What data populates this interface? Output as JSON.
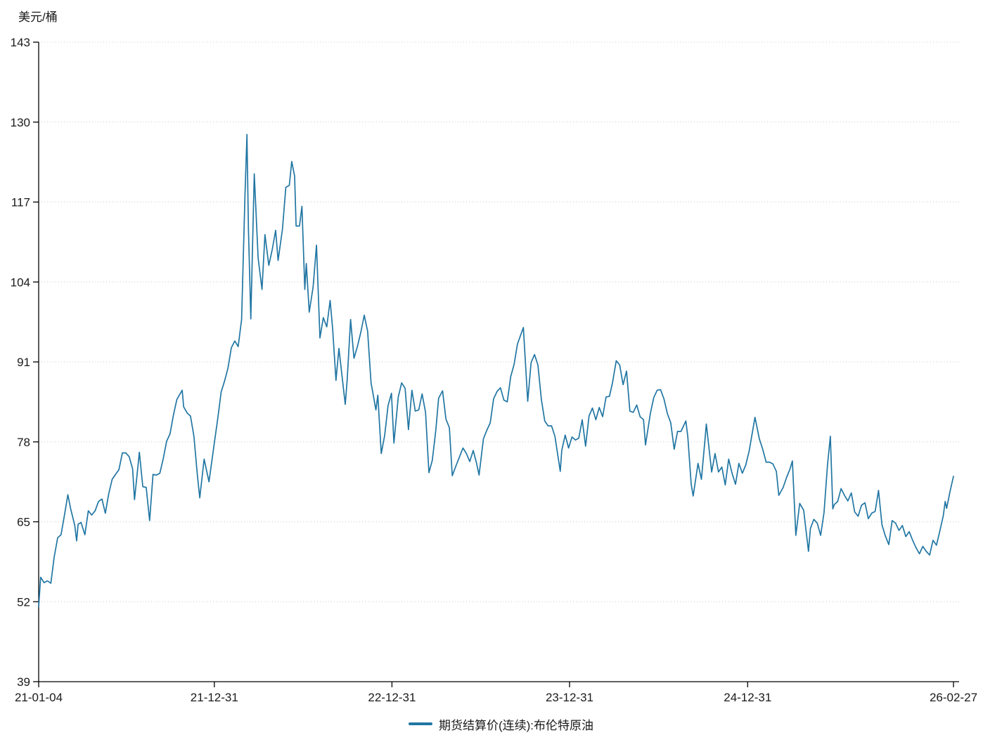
{
  "chart_data": {
    "type": "line",
    "unit": "美元/桶",
    "legend": "期货结算价(连续):布伦特原油",
    "ylim": [
      39,
      143
    ],
    "y_ticks": [
      39,
      52,
      65,
      78,
      91,
      104,
      117,
      130,
      143
    ],
    "x_ticks": [
      {
        "label": "21-01-04",
        "date": "2021-01-04"
      },
      {
        "label": "21-12-31",
        "date": "2021-12-31"
      },
      {
        "label": "22-12-31",
        "date": "2022-12-31"
      },
      {
        "label": "23-12-31",
        "date": "2023-12-31"
      },
      {
        "label": "24-12-31",
        "date": "2024-12-31"
      },
      {
        "label": "26-02-27",
        "date": "2026-02-27"
      }
    ],
    "grid": true,
    "legend_position": "bottom",
    "colors": {
      "line": "#2176a3",
      "grid": "#cccccc",
      "axis": "#000000",
      "text": "#1a1a1a"
    },
    "points": [
      [
        "2021-01-04",
        51.2
      ],
      [
        "2021-01-08",
        55.99
      ],
      [
        "2021-01-15",
        55.1
      ],
      [
        "2021-01-22",
        55.4
      ],
      [
        "2021-01-29",
        55.0
      ],
      [
        "2021-02-05",
        59.3
      ],
      [
        "2021-02-12",
        62.4
      ],
      [
        "2021-02-19",
        62.9
      ],
      [
        "2021-02-26",
        66.1
      ],
      [
        "2021-03-05",
        69.4
      ],
      [
        "2021-03-11",
        67.0
      ],
      [
        "2021-03-19",
        64.5
      ],
      [
        "2021-03-23",
        61.9
      ],
      [
        "2021-03-26",
        64.6
      ],
      [
        "2021-04-01",
        64.9
      ],
      [
        "2021-04-09",
        62.9
      ],
      [
        "2021-04-16",
        66.8
      ],
      [
        "2021-04-23",
        66.1
      ],
      [
        "2021-04-30",
        66.8
      ],
      [
        "2021-05-07",
        68.3
      ],
      [
        "2021-05-14",
        68.7
      ],
      [
        "2021-05-21",
        66.4
      ],
      [
        "2021-05-28",
        69.6
      ],
      [
        "2021-06-04",
        71.9
      ],
      [
        "2021-06-11",
        72.7
      ],
      [
        "2021-06-18",
        73.5
      ],
      [
        "2021-06-25",
        76.2
      ],
      [
        "2021-07-02",
        76.2
      ],
      [
        "2021-07-09",
        75.6
      ],
      [
        "2021-07-16",
        73.6
      ],
      [
        "2021-07-20",
        68.6
      ],
      [
        "2021-07-30",
        76.3
      ],
      [
        "2021-08-06",
        70.7
      ],
      [
        "2021-08-13",
        70.6
      ],
      [
        "2021-08-20",
        65.2
      ],
      [
        "2021-08-27",
        72.7
      ],
      [
        "2021-09-03",
        72.6
      ],
      [
        "2021-09-10",
        72.9
      ],
      [
        "2021-09-17",
        75.3
      ],
      [
        "2021-09-24",
        78.1
      ],
      [
        "2021-10-01",
        79.3
      ],
      [
        "2021-10-08",
        82.4
      ],
      [
        "2021-10-15",
        84.9
      ],
      [
        "2021-10-26",
        86.4
      ],
      [
        "2021-10-29",
        83.7
      ],
      [
        "2021-11-05",
        82.7
      ],
      [
        "2021-11-12",
        82.2
      ],
      [
        "2021-11-19",
        78.9
      ],
      [
        "2021-11-26",
        72.7
      ],
      [
        "2021-12-01",
        68.9
      ],
      [
        "2021-12-10",
        75.2
      ],
      [
        "2021-12-20",
        71.5
      ],
      [
        "2021-12-31",
        77.8
      ],
      [
        "2022-01-07",
        81.8
      ],
      [
        "2022-01-14",
        86.1
      ],
      [
        "2022-01-21",
        87.9
      ],
      [
        "2022-01-28",
        90.0
      ],
      [
        "2022-02-04",
        93.3
      ],
      [
        "2022-02-11",
        94.4
      ],
      [
        "2022-02-18",
        93.5
      ],
      [
        "2022-02-25",
        97.9
      ],
      [
        "2022-03-04",
        118.1
      ],
      [
        "2022-03-08",
        127.98
      ],
      [
        "2022-03-11",
        112.7
      ],
      [
        "2022-03-16",
        98.0
      ],
      [
        "2022-03-23",
        121.6
      ],
      [
        "2022-03-31",
        107.9
      ],
      [
        "2022-04-08",
        102.8
      ],
      [
        "2022-04-14",
        111.7
      ],
      [
        "2022-04-22",
        106.7
      ],
      [
        "2022-04-29",
        109.3
      ],
      [
        "2022-05-06",
        112.4
      ],
      [
        "2022-05-11",
        107.5
      ],
      [
        "2022-05-20",
        112.6
      ],
      [
        "2022-05-27",
        119.4
      ],
      [
        "2022-06-03",
        119.7
      ],
      [
        "2022-06-08",
        123.6
      ],
      [
        "2022-06-14",
        121.2
      ],
      [
        "2022-06-17",
        113.1
      ],
      [
        "2022-06-24",
        113.1
      ],
      [
        "2022-06-29",
        116.3
      ],
      [
        "2022-07-05",
        102.8
      ],
      [
        "2022-07-08",
        107.0
      ],
      [
        "2022-07-14",
        99.1
      ],
      [
        "2022-07-22",
        103.2
      ],
      [
        "2022-07-29",
        110.0
      ],
      [
        "2022-08-05",
        94.9
      ],
      [
        "2022-08-12",
        98.2
      ],
      [
        "2022-08-19",
        96.7
      ],
      [
        "2022-08-26",
        101.0
      ],
      [
        "2022-08-31",
        96.5
      ],
      [
        "2022-09-07",
        88.0
      ],
      [
        "2022-09-13",
        93.2
      ],
      [
        "2022-09-23",
        86.2
      ],
      [
        "2022-09-26",
        84.1
      ],
      [
        "2022-09-30",
        88.0
      ],
      [
        "2022-10-07",
        97.9
      ],
      [
        "2022-10-14",
        91.6
      ],
      [
        "2022-10-21",
        93.5
      ],
      [
        "2022-10-28",
        95.8
      ],
      [
        "2022-11-04",
        98.6
      ],
      [
        "2022-11-11",
        96.0
      ],
      [
        "2022-11-18",
        87.6
      ],
      [
        "2022-11-28",
        83.2
      ],
      [
        "2022-12-02",
        85.6
      ],
      [
        "2022-12-09",
        76.1
      ],
      [
        "2022-12-16",
        79.0
      ],
      [
        "2022-12-23",
        83.9
      ],
      [
        "2022-12-30",
        85.9
      ],
      [
        "2023-01-04",
        77.8
      ],
      [
        "2023-01-13",
        85.3
      ],
      [
        "2023-01-20",
        87.6
      ],
      [
        "2023-01-27",
        86.7
      ],
      [
        "2023-02-03",
        80.0
      ],
      [
        "2023-02-10",
        86.4
      ],
      [
        "2023-02-17",
        83.0
      ],
      [
        "2023-02-24",
        83.2
      ],
      [
        "2023-03-03",
        85.8
      ],
      [
        "2023-03-10",
        82.8
      ],
      [
        "2023-03-17",
        73.0
      ],
      [
        "2023-03-24",
        75.0
      ],
      [
        "2023-03-31",
        79.8
      ],
      [
        "2023-04-06",
        85.1
      ],
      [
        "2023-04-14",
        86.3
      ],
      [
        "2023-04-21",
        81.7
      ],
      [
        "2023-04-28",
        80.3
      ],
      [
        "2023-05-04",
        72.5
      ],
      [
        "2023-05-12",
        74.2
      ],
      [
        "2023-05-19",
        75.6
      ],
      [
        "2023-05-26",
        77.0
      ],
      [
        "2023-06-02",
        76.1
      ],
      [
        "2023-06-09",
        74.8
      ],
      [
        "2023-06-16",
        76.6
      ],
      [
        "2023-06-23",
        74.5
      ],
      [
        "2023-06-28",
        72.6
      ],
      [
        "2023-07-07",
        78.5
      ],
      [
        "2023-07-14",
        79.9
      ],
      [
        "2023-07-21",
        81.1
      ],
      [
        "2023-07-28",
        85.0
      ],
      [
        "2023-08-04",
        86.2
      ],
      [
        "2023-08-11",
        86.8
      ],
      [
        "2023-08-18",
        84.8
      ],
      [
        "2023-08-25",
        84.5
      ],
      [
        "2023-09-01",
        88.6
      ],
      [
        "2023-09-08",
        90.6
      ],
      [
        "2023-09-15",
        93.9
      ],
      [
        "2023-09-27",
        96.6
      ],
      [
        "2023-10-06",
        84.6
      ],
      [
        "2023-10-13",
        90.9
      ],
      [
        "2023-10-20",
        92.2
      ],
      [
        "2023-10-27",
        90.5
      ],
      [
        "2023-11-03",
        84.9
      ],
      [
        "2023-11-10",
        81.4
      ],
      [
        "2023-11-17",
        80.6
      ],
      [
        "2023-11-24",
        80.6
      ],
      [
        "2023-12-01",
        78.9
      ],
      [
        "2023-12-12",
        73.2
      ],
      [
        "2023-12-15",
        76.6
      ],
      [
        "2023-12-22",
        79.1
      ],
      [
        "2023-12-29",
        77.0
      ],
      [
        "2024-01-05",
        78.8
      ],
      [
        "2024-01-12",
        78.3
      ],
      [
        "2024-01-19",
        78.6
      ],
      [
        "2024-01-26",
        81.6
      ],
      [
        "2024-02-02",
        77.3
      ],
      [
        "2024-02-09",
        82.2
      ],
      [
        "2024-02-16",
        83.5
      ],
      [
        "2024-02-23",
        81.6
      ],
      [
        "2024-03-01",
        83.6
      ],
      [
        "2024-03-08",
        82.1
      ],
      [
        "2024-03-15",
        85.3
      ],
      [
        "2024-03-22",
        85.4
      ],
      [
        "2024-03-28",
        87.5
      ],
      [
        "2024-04-05",
        91.2
      ],
      [
        "2024-04-12",
        90.5
      ],
      [
        "2024-04-19",
        87.3
      ],
      [
        "2024-04-26",
        89.5
      ],
      [
        "2024-05-03",
        83.0
      ],
      [
        "2024-05-10",
        82.8
      ],
      [
        "2024-05-17",
        84.0
      ],
      [
        "2024-05-24",
        82.1
      ],
      [
        "2024-05-31",
        81.6
      ],
      [
        "2024-06-04",
        77.5
      ],
      [
        "2024-06-14",
        82.6
      ],
      [
        "2024-06-21",
        85.2
      ],
      [
        "2024-06-28",
        86.4
      ],
      [
        "2024-07-05",
        86.5
      ],
      [
        "2024-07-12",
        85.0
      ],
      [
        "2024-07-19",
        82.6
      ],
      [
        "2024-07-26",
        81.1
      ],
      [
        "2024-08-02",
        76.8
      ],
      [
        "2024-08-09",
        79.7
      ],
      [
        "2024-08-16",
        79.7
      ],
      [
        "2024-08-26",
        81.4
      ],
      [
        "2024-08-30",
        78.8
      ],
      [
        "2024-09-06",
        71.1
      ],
      [
        "2024-09-10",
        69.2
      ],
      [
        "2024-09-20",
        74.5
      ],
      [
        "2024-09-27",
        71.9
      ],
      [
        "2024-10-04",
        78.1
      ],
      [
        "2024-10-07",
        80.9
      ],
      [
        "2024-10-18",
        73.1
      ],
      [
        "2024-10-25",
        76.1
      ],
      [
        "2024-11-01",
        73.1
      ],
      [
        "2024-11-08",
        73.9
      ],
      [
        "2024-11-15",
        71.0
      ],
      [
        "2024-11-22",
        75.2
      ],
      [
        "2024-11-29",
        72.9
      ],
      [
        "2024-12-06",
        71.1
      ],
      [
        "2024-12-13",
        74.5
      ],
      [
        "2024-12-20",
        72.9
      ],
      [
        "2024-12-27",
        74.2
      ],
      [
        "2025-01-03",
        76.5
      ],
      [
        "2025-01-15",
        82.0
      ],
      [
        "2025-01-24",
        78.5
      ],
      [
        "2025-01-31",
        76.8
      ],
      [
        "2025-02-07",
        74.7
      ],
      [
        "2025-02-14",
        74.7
      ],
      [
        "2025-02-21",
        74.4
      ],
      [
        "2025-02-28",
        73.2
      ],
      [
        "2025-03-05",
        69.3
      ],
      [
        "2025-03-14",
        70.6
      ],
      [
        "2025-03-21",
        72.2
      ],
      [
        "2025-03-28",
        73.6
      ],
      [
        "2025-04-02",
        74.9
      ],
      [
        "2025-04-09",
        62.8
      ],
      [
        "2025-04-17",
        68.0
      ],
      [
        "2025-04-25",
        66.9
      ],
      [
        "2025-05-05",
        60.2
      ],
      [
        "2025-05-09",
        63.9
      ],
      [
        "2025-05-16",
        65.4
      ],
      [
        "2025-05-23",
        64.8
      ],
      [
        "2025-05-30",
        62.8
      ],
      [
        "2025-06-06",
        66.5
      ],
      [
        "2025-06-13",
        74.2
      ],
      [
        "2025-06-19",
        78.9
      ],
      [
        "2025-06-24",
        67.1
      ],
      [
        "2025-06-27",
        67.8
      ],
      [
        "2025-07-04",
        68.3
      ],
      [
        "2025-07-11",
        70.4
      ],
      [
        "2025-07-18",
        69.3
      ],
      [
        "2025-07-25",
        68.4
      ],
      [
        "2025-08-01",
        69.7
      ],
      [
        "2025-08-08",
        66.6
      ],
      [
        "2025-08-15",
        65.9
      ],
      [
        "2025-08-22",
        67.7
      ],
      [
        "2025-08-29",
        68.1
      ],
      [
        "2025-09-05",
        65.5
      ],
      [
        "2025-09-12",
        66.4
      ],
      [
        "2025-09-19",
        66.7
      ],
      [
        "2025-09-26",
        70.1
      ],
      [
        "2025-10-03",
        64.5
      ],
      [
        "2025-10-10",
        62.7
      ],
      [
        "2025-10-17",
        61.3
      ],
      [
        "2025-10-24",
        65.2
      ],
      [
        "2025-10-31",
        64.8
      ],
      [
        "2025-11-07",
        63.6
      ],
      [
        "2025-11-14",
        64.4
      ],
      [
        "2025-11-21",
        62.6
      ],
      [
        "2025-11-28",
        63.4
      ],
      [
        "2025-12-05",
        62.0
      ],
      [
        "2025-12-12",
        60.8
      ],
      [
        "2025-12-19",
        59.8
      ],
      [
        "2025-12-26",
        61.0
      ],
      [
        "2026-01-02",
        60.2
      ],
      [
        "2026-01-09",
        59.6
      ],
      [
        "2026-01-16",
        62.0
      ],
      [
        "2026-01-23",
        61.2
      ],
      [
        "2026-01-30",
        63.5
      ],
      [
        "2026-02-06",
        66.0
      ],
      [
        "2026-02-10",
        68.3
      ],
      [
        "2026-02-13",
        67.2
      ],
      [
        "2026-02-20",
        70.0
      ],
      [
        "2026-02-27",
        72.4
      ]
    ]
  }
}
